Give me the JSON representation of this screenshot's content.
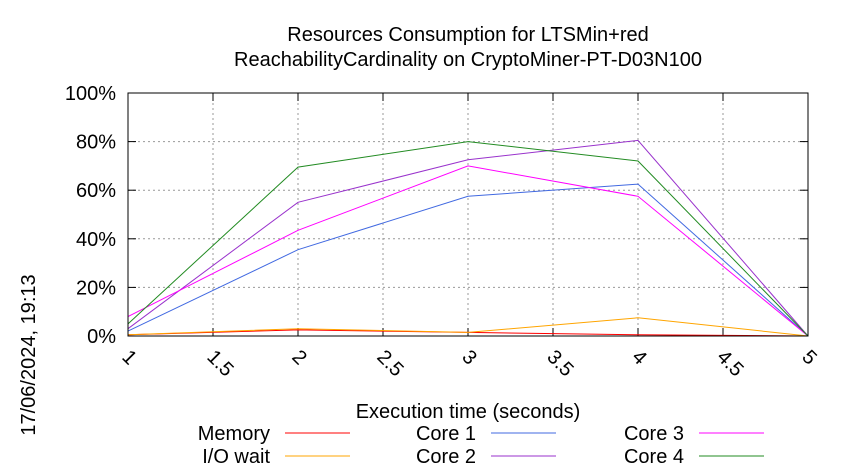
{
  "chart_data": {
    "type": "line",
    "title_line1": "Resources Consumption for LTSMin+red",
    "title_line2": "ReachabilityCardinality on CryptoMiner-PT-D03N100",
    "xlabel": "Execution time (seconds)",
    "ylabel": "",
    "timestamp": "17/06/2024, 19:13",
    "xlim": [
      1,
      5
    ],
    "ylim": [
      0,
      100
    ],
    "x_ticks": [
      1,
      1.5,
      2,
      2.5,
      3,
      3.5,
      4,
      4.5,
      5
    ],
    "x_tick_labels": [
      "1",
      "1.5",
      "2",
      "2.5",
      "3",
      "3.5",
      "4",
      "4.5",
      "5"
    ],
    "y_ticks": [
      0,
      20,
      40,
      60,
      80,
      100
    ],
    "y_tick_labels": [
      "0%",
      "20%",
      "40%",
      "60%",
      "80%",
      "100%"
    ],
    "grid": true,
    "legend_position": "bottom",
    "x": [
      1,
      2,
      3,
      4,
      5
    ],
    "series": [
      {
        "name": "Memory",
        "color": "#ff0000",
        "values": [
          0.5,
          2.5,
          1.5,
          0.5,
          0
        ]
      },
      {
        "name": "I/O wait",
        "color": "#ffa500",
        "values": [
          0.5,
          3,
          1.5,
          7.5,
          0
        ]
      },
      {
        "name": "Core 1",
        "color": "#4169e1",
        "values": [
          2,
          35.5,
          57.5,
          62.5,
          0
        ]
      },
      {
        "name": "Core 2",
        "color": "#9932cc",
        "values": [
          3,
          55,
          72.5,
          80.5,
          0
        ]
      },
      {
        "name": "Core 3",
        "color": "#ff00ff",
        "values": [
          8,
          43.5,
          70,
          57.5,
          0
        ]
      },
      {
        "name": "Core 4",
        "color": "#228b22",
        "values": [
          5,
          69.5,
          80,
          72,
          0
        ]
      }
    ]
  }
}
